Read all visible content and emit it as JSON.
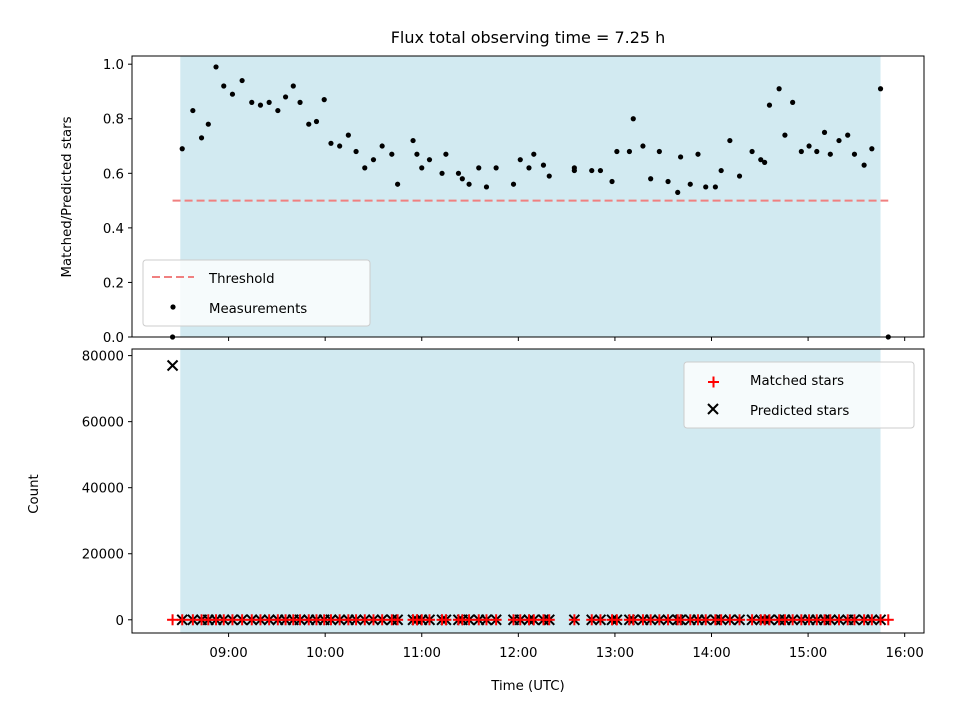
{
  "chart_data": [
    {
      "type": "scatter",
      "title": "Flux total observing time = 7.25 h",
      "xlabel": "",
      "ylabel": "Matched/Predicted stars",
      "ylim": [
        0,
        1.03
      ],
      "x_unit": "decimal hours UTC",
      "xlim": [
        8.0,
        16.2
      ],
      "yticks": [
        "0.0",
        "0.2",
        "0.4",
        "0.6",
        "0.8",
        "1.0"
      ],
      "shaded_interval": [
        8.5,
        15.75
      ],
      "threshold": {
        "name": "Threshold",
        "y": 0.5,
        "x_range": [
          8.42,
          15.83
        ],
        "color": "#f08080",
        "style": "dashed"
      },
      "legend": {
        "placement": "lower-left",
        "entries": [
          "Threshold",
          "Measurements"
        ]
      },
      "series": [
        {
          "name": "Measurements",
          "color": "#000000",
          "points": [
            [
              8.42,
              0.0
            ],
            [
              8.52,
              0.69
            ],
            [
              8.63,
              0.83
            ],
            [
              8.72,
              0.73
            ],
            [
              8.79,
              0.78
            ],
            [
              8.87,
              0.99
            ],
            [
              8.95,
              0.92
            ],
            [
              9.04,
              0.89
            ],
            [
              9.14,
              0.94
            ],
            [
              9.24,
              0.86
            ],
            [
              9.33,
              0.85
            ],
            [
              9.42,
              0.86
            ],
            [
              9.51,
              0.83
            ],
            [
              9.59,
              0.88
            ],
            [
              9.67,
              0.92
            ],
            [
              9.74,
              0.86
            ],
            [
              9.83,
              0.78
            ],
            [
              9.91,
              0.79
            ],
            [
              9.99,
              0.87
            ],
            [
              10.06,
              0.71
            ],
            [
              10.15,
              0.7
            ],
            [
              10.24,
              0.74
            ],
            [
              10.32,
              0.68
            ],
            [
              10.41,
              0.62
            ],
            [
              10.5,
              0.65
            ],
            [
              10.59,
              0.7
            ],
            [
              10.69,
              0.67
            ],
            [
              10.75,
              0.56
            ],
            [
              10.91,
              0.72
            ],
            [
              10.95,
              0.67
            ],
            [
              11.0,
              0.62
            ],
            [
              11.08,
              0.65
            ],
            [
              11.21,
              0.6
            ],
            [
              11.25,
              0.67
            ],
            [
              11.38,
              0.6
            ],
            [
              11.42,
              0.58
            ],
            [
              11.49,
              0.56
            ],
            [
              11.59,
              0.62
            ],
            [
              11.67,
              0.55
            ],
            [
              11.77,
              0.62
            ],
            [
              11.95,
              0.56
            ],
            [
              12.02,
              0.65
            ],
            [
              12.11,
              0.62
            ],
            [
              12.16,
              0.67
            ],
            [
              12.26,
              0.63
            ],
            [
              12.32,
              0.59
            ],
            [
              12.58,
              0.62
            ],
            [
              12.58,
              0.61
            ],
            [
              12.76,
              0.61
            ],
            [
              12.85,
              0.61
            ],
            [
              12.97,
              0.57
            ],
            [
              13.02,
              0.68
            ],
            [
              13.15,
              0.68
            ],
            [
              13.19,
              0.8
            ],
            [
              13.29,
              0.7
            ],
            [
              13.37,
              0.58
            ],
            [
              13.46,
              0.68
            ],
            [
              13.55,
              0.57
            ],
            [
              13.65,
              0.53
            ],
            [
              13.68,
              0.66
            ],
            [
              13.78,
              0.56
            ],
            [
              13.86,
              0.67
            ],
            [
              13.94,
              0.55
            ],
            [
              14.04,
              0.55
            ],
            [
              14.1,
              0.61
            ],
            [
              14.19,
              0.72
            ],
            [
              14.29,
              0.59
            ],
            [
              14.42,
              0.68
            ],
            [
              14.51,
              0.65
            ],
            [
              14.55,
              0.64
            ],
            [
              14.6,
              0.85
            ],
            [
              14.7,
              0.91
            ],
            [
              14.76,
              0.74
            ],
            [
              14.84,
              0.86
            ],
            [
              14.93,
              0.68
            ],
            [
              15.01,
              0.7
            ],
            [
              15.09,
              0.68
            ],
            [
              15.17,
              0.75
            ],
            [
              15.23,
              0.67
            ],
            [
              15.32,
              0.72
            ],
            [
              15.41,
              0.74
            ],
            [
              15.48,
              0.67
            ],
            [
              15.58,
              0.63
            ],
            [
              15.66,
              0.69
            ],
            [
              15.75,
              0.91
            ],
            [
              15.83,
              0.0
            ]
          ]
        }
      ]
    },
    {
      "type": "scatter",
      "xlabel": "Time (UTC)",
      "ylabel": "Count",
      "ylim": [
        -4000,
        82000
      ],
      "x_unit": "decimal hours UTC",
      "xlim": [
        8.0,
        16.2
      ],
      "xticks": [
        "09:00",
        "10:00",
        "11:00",
        "12:00",
        "13:00",
        "14:00",
        "15:00",
        "16:00"
      ],
      "yticks": [
        "0",
        "20000",
        "40000",
        "60000",
        "80000"
      ],
      "shaded_interval": [
        8.5,
        15.75
      ],
      "legend": {
        "placement": "top-right",
        "entries": [
          "Matched stars",
          "Predicted stars"
        ]
      },
      "series": [
        {
          "name": "Matched stars",
          "marker": "plus",
          "color": "#ff0000",
          "points": [
            [
              8.42,
              0
            ],
            [
              8.52,
              0
            ],
            [
              8.63,
              0
            ],
            [
              8.72,
              0
            ],
            [
              8.79,
              0
            ],
            [
              8.87,
              0
            ],
            [
              8.95,
              0
            ],
            [
              9.04,
              0
            ],
            [
              9.14,
              0
            ],
            [
              9.24,
              0
            ],
            [
              9.33,
              0
            ],
            [
              9.42,
              0
            ],
            [
              9.51,
              0
            ],
            [
              9.59,
              0
            ],
            [
              9.67,
              0
            ],
            [
              9.74,
              0
            ],
            [
              9.83,
              0
            ],
            [
              9.91,
              0
            ],
            [
              9.99,
              0
            ],
            [
              10.06,
              0
            ],
            [
              10.15,
              0
            ],
            [
              10.24,
              0
            ],
            [
              10.32,
              0
            ],
            [
              10.41,
              0
            ],
            [
              10.5,
              0
            ],
            [
              10.59,
              0
            ],
            [
              10.69,
              0
            ],
            [
              10.75,
              0
            ],
            [
              10.91,
              0
            ],
            [
              10.95,
              0
            ],
            [
              11.0,
              0
            ],
            [
              11.08,
              0
            ],
            [
              11.21,
              0
            ],
            [
              11.25,
              0
            ],
            [
              11.38,
              0
            ],
            [
              11.42,
              0
            ],
            [
              11.49,
              0
            ],
            [
              11.59,
              0
            ],
            [
              11.67,
              0
            ],
            [
              11.77,
              0
            ],
            [
              11.95,
              0
            ],
            [
              12.02,
              0
            ],
            [
              12.11,
              0
            ],
            [
              12.16,
              0
            ],
            [
              12.26,
              0
            ],
            [
              12.32,
              0
            ],
            [
              12.58,
              0
            ],
            [
              12.76,
              0
            ],
            [
              12.85,
              0
            ],
            [
              12.97,
              0
            ],
            [
              13.02,
              0
            ],
            [
              13.15,
              0
            ],
            [
              13.19,
              0
            ],
            [
              13.29,
              0
            ],
            [
              13.37,
              0
            ],
            [
              13.46,
              0
            ],
            [
              13.55,
              0
            ],
            [
              13.65,
              0
            ],
            [
              13.68,
              0
            ],
            [
              13.78,
              0
            ],
            [
              13.86,
              0
            ],
            [
              13.94,
              0
            ],
            [
              14.04,
              0
            ],
            [
              14.1,
              0
            ],
            [
              14.19,
              0
            ],
            [
              14.29,
              0
            ],
            [
              14.42,
              0
            ],
            [
              14.51,
              0
            ],
            [
              14.55,
              0
            ],
            [
              14.6,
              0
            ],
            [
              14.7,
              0
            ],
            [
              14.76,
              0
            ],
            [
              14.84,
              0
            ],
            [
              14.93,
              0
            ],
            [
              15.01,
              0
            ],
            [
              15.09,
              0
            ],
            [
              15.17,
              0
            ],
            [
              15.23,
              0
            ],
            [
              15.32,
              0
            ],
            [
              15.41,
              0
            ],
            [
              15.48,
              0
            ],
            [
              15.58,
              0
            ],
            [
              15.66,
              0
            ],
            [
              15.75,
              0
            ],
            [
              15.83,
              0
            ]
          ]
        },
        {
          "name": "Predicted stars",
          "marker": "x",
          "color": "#000000",
          "points": [
            [
              8.42,
              77000
            ],
            [
              8.52,
              0
            ],
            [
              8.63,
              0
            ],
            [
              8.72,
              0
            ],
            [
              8.79,
              0
            ],
            [
              8.87,
              0
            ],
            [
              8.95,
              0
            ],
            [
              9.04,
              0
            ],
            [
              9.14,
              0
            ],
            [
              9.24,
              0
            ],
            [
              9.33,
              0
            ],
            [
              9.42,
              0
            ],
            [
              9.51,
              0
            ],
            [
              9.59,
              0
            ],
            [
              9.67,
              0
            ],
            [
              9.74,
              0
            ],
            [
              9.83,
              0
            ],
            [
              9.91,
              0
            ],
            [
              9.99,
              0
            ],
            [
              10.06,
              0
            ],
            [
              10.15,
              0
            ],
            [
              10.24,
              0
            ],
            [
              10.32,
              0
            ],
            [
              10.41,
              0
            ],
            [
              10.5,
              0
            ],
            [
              10.59,
              0
            ],
            [
              10.69,
              0
            ],
            [
              10.75,
              0
            ],
            [
              10.91,
              0
            ],
            [
              10.95,
              0
            ],
            [
              11.0,
              0
            ],
            [
              11.08,
              0
            ],
            [
              11.21,
              0
            ],
            [
              11.25,
              0
            ],
            [
              11.38,
              0
            ],
            [
              11.42,
              0
            ],
            [
              11.49,
              0
            ],
            [
              11.59,
              0
            ],
            [
              11.67,
              0
            ],
            [
              11.77,
              0
            ],
            [
              11.95,
              0
            ],
            [
              12.02,
              0
            ],
            [
              12.11,
              0
            ],
            [
              12.16,
              0
            ],
            [
              12.26,
              0
            ],
            [
              12.32,
              0
            ],
            [
              12.58,
              0
            ],
            [
              12.76,
              0
            ],
            [
              12.85,
              0
            ],
            [
              12.97,
              0
            ],
            [
              13.02,
              0
            ],
            [
              13.15,
              0
            ],
            [
              13.19,
              0
            ],
            [
              13.29,
              0
            ],
            [
              13.37,
              0
            ],
            [
              13.46,
              0
            ],
            [
              13.55,
              0
            ],
            [
              13.65,
              0
            ],
            [
              13.68,
              0
            ],
            [
              13.78,
              0
            ],
            [
              13.86,
              0
            ],
            [
              13.94,
              0
            ],
            [
              14.04,
              0
            ],
            [
              14.1,
              0
            ],
            [
              14.19,
              0
            ],
            [
              14.29,
              0
            ],
            [
              14.42,
              0
            ],
            [
              14.51,
              0
            ],
            [
              14.55,
              0
            ],
            [
              14.6,
              0
            ],
            [
              14.7,
              0
            ],
            [
              14.76,
              0
            ],
            [
              14.84,
              0
            ],
            [
              14.93,
              0
            ],
            [
              15.01,
              0
            ],
            [
              15.09,
              0
            ],
            [
              15.17,
              0
            ],
            [
              15.23,
              0
            ],
            [
              15.32,
              0
            ],
            [
              15.41,
              0
            ],
            [
              15.48,
              0
            ],
            [
              15.58,
              0
            ],
            [
              15.66,
              0
            ],
            [
              15.75,
              0
            ]
          ]
        }
      ]
    }
  ],
  "colors": {
    "shade": "#add8e6",
    "threshold": "#f08080",
    "measurement": "#000000",
    "matched": "#ff0000",
    "predicted": "#000000"
  }
}
